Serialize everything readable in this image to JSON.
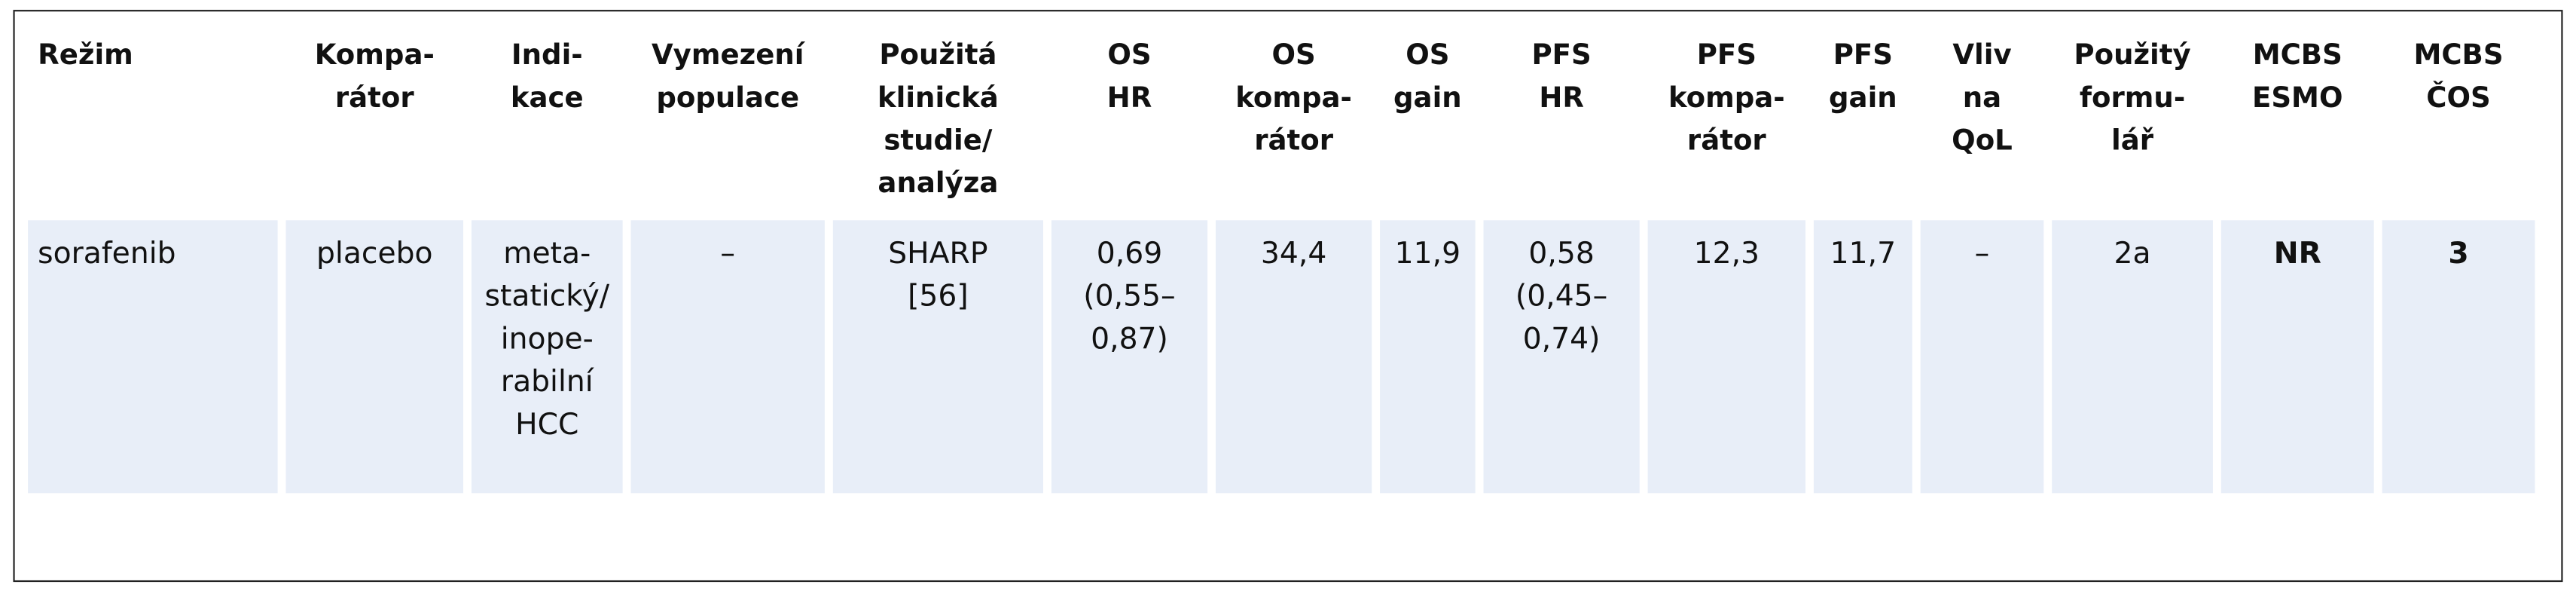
{
  "table": {
    "header": [
      "Režim",
      "Kompa-\nrátor",
      "Indi-\nkace",
      "Vymezení\npopulace",
      "Použitá\nklinická\nstudie/\nanalýza",
      "OS\nHR",
      "OS\nkompa-\nrátor",
      "OS\ngain",
      "PFS\nHR",
      "PFS\nkompa-\nrátor",
      "PFS\ngain",
      "Vliv\nna\nQoL",
      "Použitý\nformu-\nlář",
      "MCBS\nESMO",
      "MCBS\nČOS"
    ],
    "rows": [
      [
        "sorafenib",
        "placebo",
        "meta-\nstatický/\ninope-\nrabilní\nHCC",
        "–",
        "SHARP\n[56]",
        "0,69\n(0,55–\n0,87)",
        "34,4",
        "11,9",
        "0,58\n(0,45–\n0,74)",
        "12,3",
        "11,7",
        "–",
        "2a",
        "NR",
        "3"
      ]
    ]
  }
}
